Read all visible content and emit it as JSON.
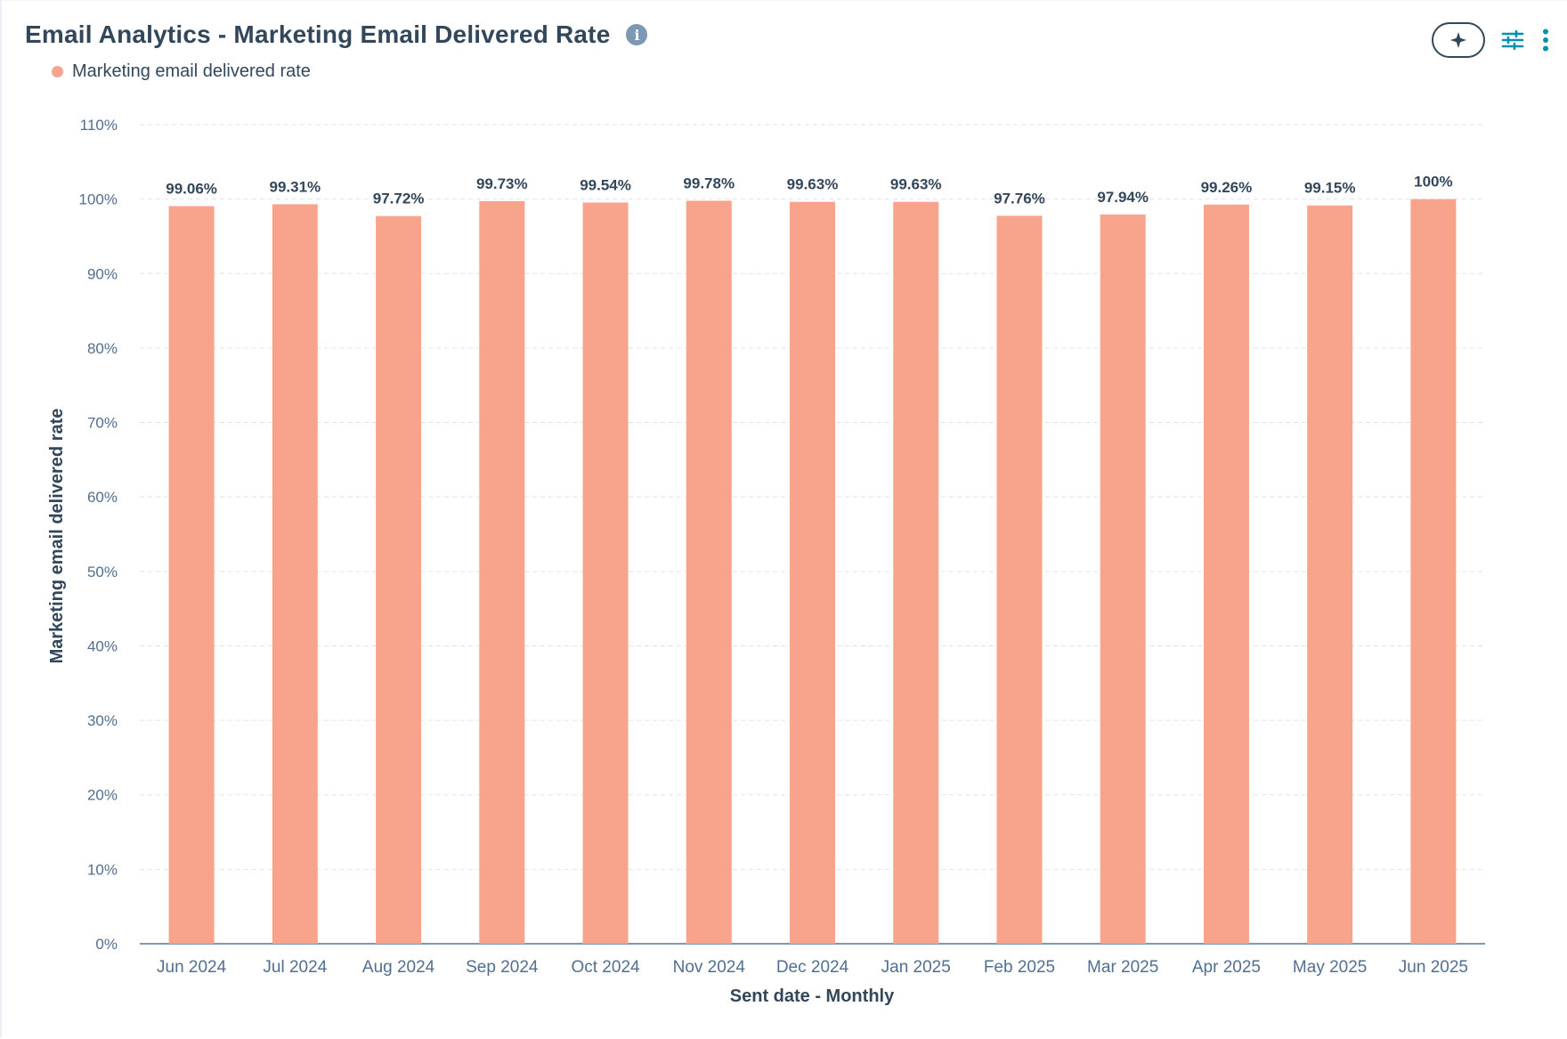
{
  "card": {
    "title": "Email Analytics - Marketing Email Delivered Rate",
    "info_icon": "info-icon",
    "toolbar": {
      "ai_icon": "sparkle-icon",
      "filter_icon": "sliders-icon",
      "more_icon": "vertical-dots-icon"
    }
  },
  "colors": {
    "bar": "#f8a48c",
    "grid": "#dfe3eb",
    "baseline": "#7c98b6",
    "accent": "#0091ae"
  },
  "chart_data": {
    "type": "bar",
    "title": "Email Analytics - Marketing Email Delivered Rate",
    "legend": [
      "Marketing email delivered rate"
    ],
    "legend_position": "top-left",
    "xlabel": "Sent date - Monthly",
    "ylabel": "Marketing email delivered rate",
    "ylim": [
      0,
      110
    ],
    "yticks": [
      0,
      10,
      20,
      30,
      40,
      50,
      60,
      70,
      80,
      90,
      100,
      110
    ],
    "ytick_labels": [
      "0%",
      "10%",
      "20%",
      "30%",
      "40%",
      "50%",
      "60%",
      "70%",
      "80%",
      "90%",
      "100%",
      "110%"
    ],
    "grid": true,
    "categories": [
      "Jun 2024",
      "Jul 2024",
      "Aug 2024",
      "Sep 2024",
      "Oct 2024",
      "Nov 2024",
      "Dec 2024",
      "Jan 2025",
      "Feb 2025",
      "Mar 2025",
      "Apr 2025",
      "May 2025",
      "Jun 2025"
    ],
    "series": [
      {
        "name": "Marketing email delivered rate",
        "values": [
          99.06,
          99.31,
          97.72,
          99.73,
          99.54,
          99.78,
          99.63,
          99.63,
          97.76,
          97.94,
          99.26,
          99.15,
          100
        ],
        "labels": [
          "99.06%",
          "99.31%",
          "97.72%",
          "99.73%",
          "99.54%",
          "99.78%",
          "99.63%",
          "99.63%",
          "97.76%",
          "97.94%",
          "99.26%",
          "99.15%",
          "100%"
        ]
      }
    ]
  }
}
